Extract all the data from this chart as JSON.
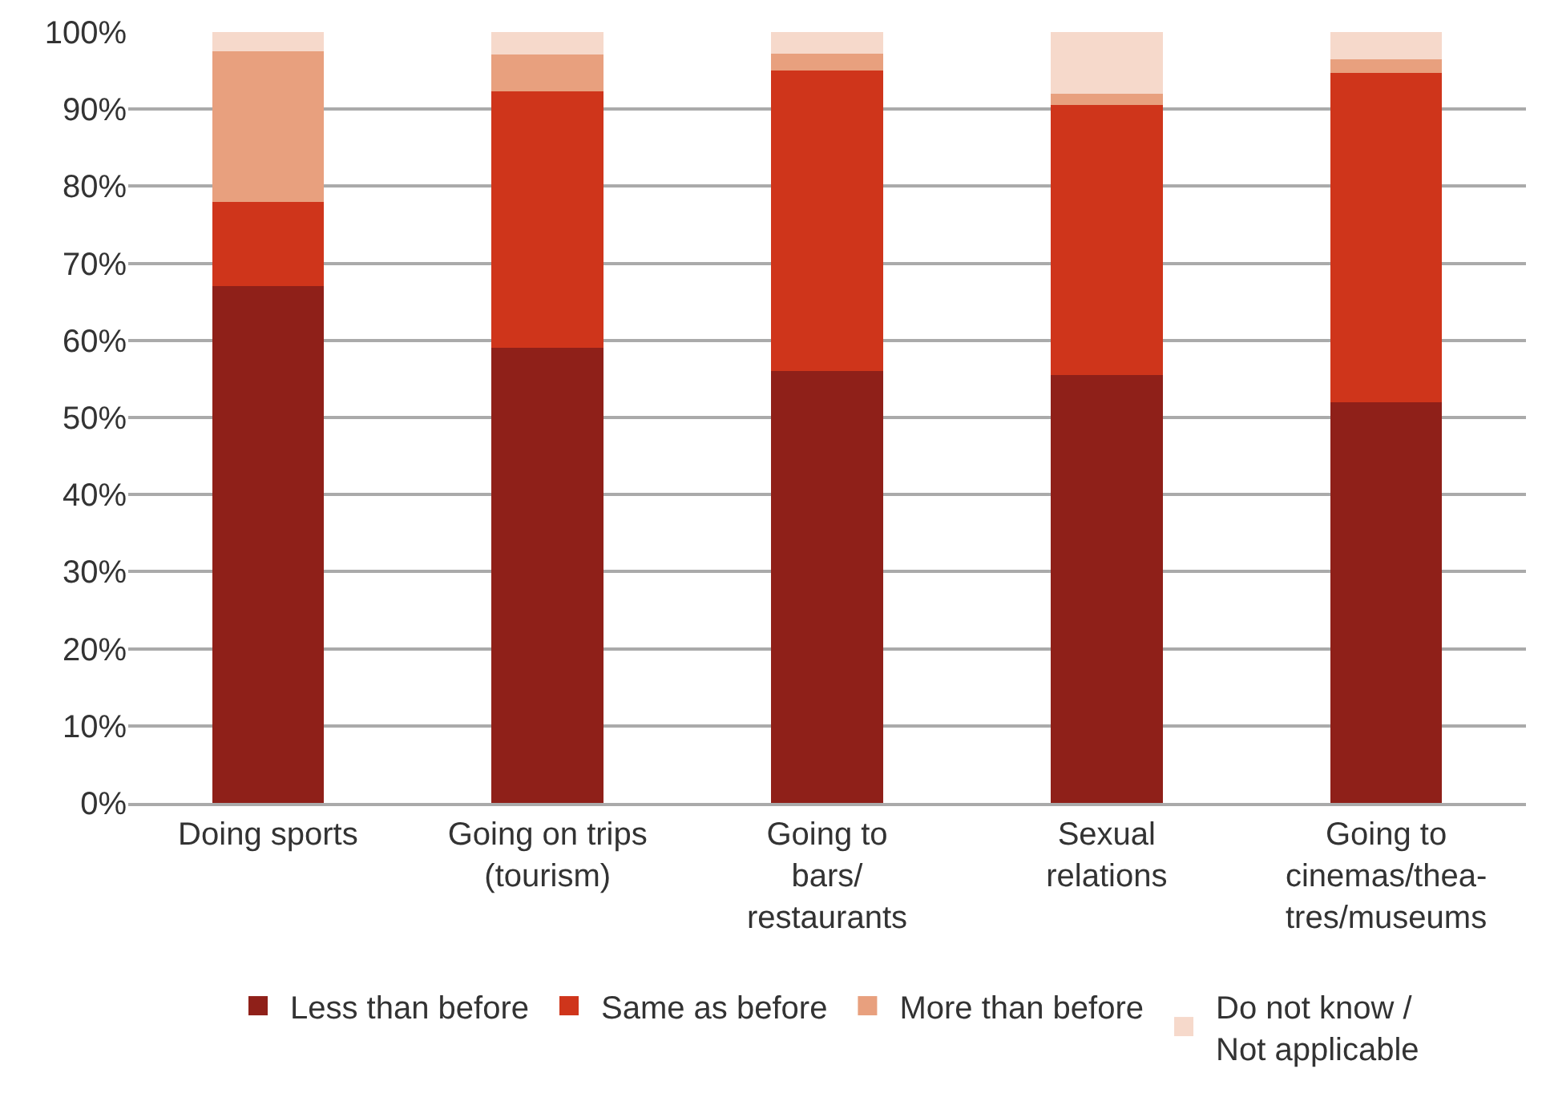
{
  "chart_data": {
    "type": "bar",
    "stacked": true,
    "categories": [
      "Doing sports",
      "Going on trips\n(tourism)",
      "Going to\nbars/\nrestaurants",
      "Sexual\nrelations",
      "Going to\ncinemas/thea-\ntres/museums"
    ],
    "series": [
      {
        "name": "Less than before",
        "color": "#8f2019",
        "values": [
          67,
          59,
          56,
          55.5,
          52
        ]
      },
      {
        "name": "Same as before",
        "color": "#cf351b",
        "values": [
          11,
          33.3,
          39,
          35,
          42.7
        ]
      },
      {
        "name": "More than before",
        "color": "#e8a07e",
        "values": [
          19.5,
          4.8,
          2.2,
          1.5,
          1.8
        ]
      },
      {
        "name": "Do not know /\nNot applicable",
        "color": "#f6d9cb",
        "values": [
          2.5,
          2.9,
          2.8,
          8,
          3.5
        ]
      }
    ],
    "ylim": [
      0,
      100
    ],
    "yticks": [
      {
        "value": 0,
        "label": "0%"
      },
      {
        "value": 10,
        "label": "10%"
      },
      {
        "value": 20,
        "label": "20%"
      },
      {
        "value": 30,
        "label": "30%"
      },
      {
        "value": 40,
        "label": "40%"
      },
      {
        "value": 50,
        "label": "50%"
      },
      {
        "value": 60,
        "label": "60%"
      },
      {
        "value": 70,
        "label": "70%"
      },
      {
        "value": 80,
        "label": "80%"
      },
      {
        "value": 90,
        "label": "90%"
      },
      {
        "value": 100,
        "label": "100%"
      }
    ],
    "grid": "y",
    "legend": "bottom"
  }
}
